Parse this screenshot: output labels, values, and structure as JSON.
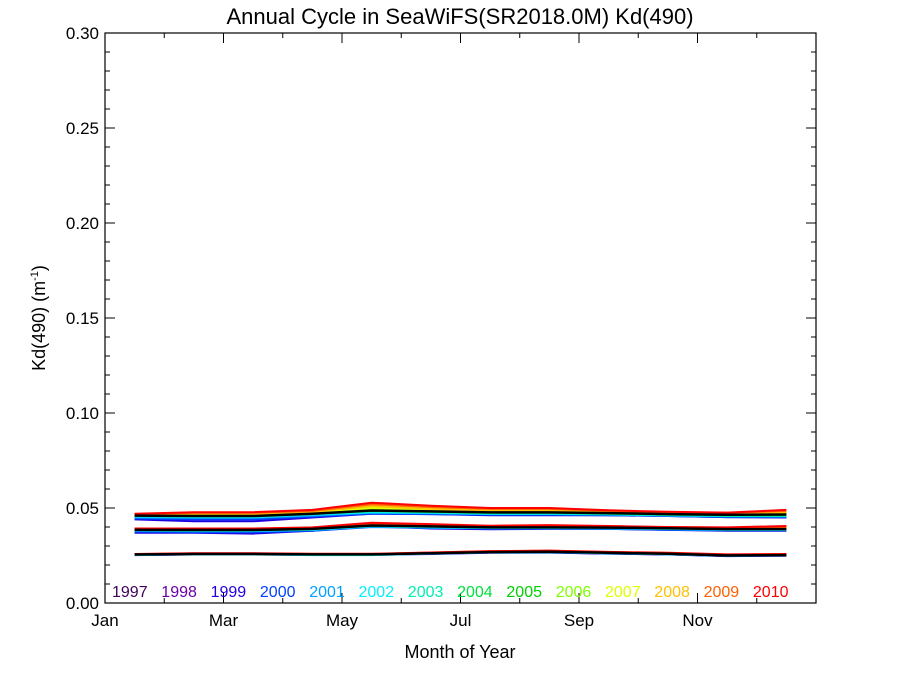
{
  "chart_data": {
    "type": "line",
    "title": "Annual Cycle in SeaWiFS(SR2018.0M) Kd(490)",
    "xlabel": "Month of Year",
    "ylabel_main": "Kd(490) (m",
    "ylabel_sup": "-1",
    "ylabel_close": ")",
    "xlim": [
      0,
      12
    ],
    "ylim": [
      0.0,
      0.3
    ],
    "grid": false,
    "x_ticks": [
      {
        "value": 0,
        "label": "Jan"
      },
      {
        "value": 2,
        "label": "Mar"
      },
      {
        "value": 4,
        "label": "May"
      },
      {
        "value": 6,
        "label": "Jul"
      },
      {
        "value": 8,
        "label": "Sep"
      },
      {
        "value": 10,
        "label": "Nov"
      }
    ],
    "y_ticks": [
      {
        "value": 0.0,
        "label": "0.00"
      },
      {
        "value": 0.05,
        "label": "0.05"
      },
      {
        "value": 0.1,
        "label": "0.10"
      },
      {
        "value": 0.15,
        "label": "0.15"
      },
      {
        "value": 0.2,
        "label": "0.20"
      },
      {
        "value": 0.25,
        "label": "0.25"
      },
      {
        "value": 0.3,
        "label": "0.30"
      }
    ],
    "x": [
      0.5,
      1.5,
      2.5,
      3.5,
      4.5,
      5.5,
      6.5,
      7.5,
      8.5,
      9.5,
      10.5,
      11.5
    ],
    "legend_placement": "bottom",
    "series": [
      {
        "name": "1997",
        "color": "#40005a",
        "upper": [
          0.046,
          0.046,
          0.046,
          0.0475,
          0.0485,
          0.048,
          0.0475,
          0.0475,
          0.047,
          0.0465,
          0.046,
          0.046
        ],
        "middle": [
          0.0385,
          0.0385,
          0.0385,
          0.0385,
          0.0405,
          0.04,
          0.0395,
          0.0395,
          0.0395,
          0.039,
          0.0385,
          0.0385
        ],
        "lower": [
          0.0255,
          0.0258,
          0.0258,
          0.0256,
          0.0256,
          0.0262,
          0.0268,
          0.0268,
          0.0262,
          0.0258,
          0.025,
          0.0252
        ]
      },
      {
        "name": "1998",
        "color": "#6a00a8",
        "upper": [
          0.0455,
          0.0455,
          0.0455,
          0.047,
          0.048,
          0.0478,
          0.0472,
          0.0472,
          0.0468,
          0.0462,
          0.0458,
          0.0458
        ],
        "middle": [
          0.038,
          0.038,
          0.038,
          0.0382,
          0.0402,
          0.0398,
          0.0392,
          0.0392,
          0.0392,
          0.0388,
          0.0382,
          0.0382
        ],
        "lower": [
          0.0253,
          0.0256,
          0.0256,
          0.0254,
          0.0254,
          0.026,
          0.0266,
          0.0266,
          0.026,
          0.0256,
          0.0248,
          0.025
        ]
      },
      {
        "name": "1999",
        "color": "#2000e0",
        "upper": [
          0.044,
          0.043,
          0.043,
          0.045,
          0.047,
          0.0468,
          0.0462,
          0.0462,
          0.0462,
          0.0458,
          0.0452,
          0.045
        ],
        "middle": [
          0.037,
          0.037,
          0.0365,
          0.038,
          0.0405,
          0.0392,
          0.0388,
          0.039,
          0.039,
          0.0385,
          0.038,
          0.038
        ],
        "lower": [
          0.0252,
          0.0255,
          0.0255,
          0.0253,
          0.0253,
          0.0258,
          0.0264,
          0.0265,
          0.026,
          0.0255,
          0.0247,
          0.0249
        ]
      },
      {
        "name": "2000",
        "color": "#0040ff",
        "upper": [
          0.0445,
          0.044,
          0.044,
          0.0455,
          0.047,
          0.0468,
          0.0465,
          0.0465,
          0.0462,
          0.0458,
          0.0452,
          0.0452
        ],
        "middle": [
          0.0375,
          0.0372,
          0.0372,
          0.038,
          0.04,
          0.0395,
          0.0392,
          0.0392,
          0.039,
          0.0386,
          0.0382,
          0.0382
        ],
        "lower": [
          0.0254,
          0.0257,
          0.0257,
          0.0255,
          0.0255,
          0.0261,
          0.0267,
          0.0267,
          0.0261,
          0.0257,
          0.0249,
          0.0251
        ]
      },
      {
        "name": "2001",
        "color": "#00a0ff",
        "upper": [
          0.045,
          0.0448,
          0.0448,
          0.046,
          0.0475,
          0.0472,
          0.0468,
          0.0468,
          0.0465,
          0.046,
          0.0456,
          0.0456
        ],
        "middle": [
          0.038,
          0.0378,
          0.0378,
          0.0384,
          0.0402,
          0.0397,
          0.0393,
          0.0393,
          0.0392,
          0.0388,
          0.0384,
          0.0384
        ],
        "lower": [
          0.0254,
          0.0257,
          0.0257,
          0.0255,
          0.0255,
          0.0261,
          0.0267,
          0.0268,
          0.0262,
          0.0257,
          0.0249,
          0.0251
        ]
      },
      {
        "name": "2002",
        "color": "#00f0ff",
        "upper": [
          0.0455,
          0.0452,
          0.0452,
          0.0465,
          0.0478,
          0.0475,
          0.047,
          0.047,
          0.0467,
          0.0462,
          0.0458,
          0.0458
        ],
        "middle": [
          0.0382,
          0.038,
          0.038,
          0.0386,
          0.0404,
          0.0399,
          0.0395,
          0.0395,
          0.0394,
          0.039,
          0.0386,
          0.0386
        ],
        "lower": [
          0.0253,
          0.0256,
          0.0256,
          0.0252,
          0.0252,
          0.026,
          0.0266,
          0.0268,
          0.0262,
          0.0257,
          0.0249,
          0.025
        ]
      },
      {
        "name": "2003",
        "color": "#00f0b0",
        "upper": [
          0.0458,
          0.0456,
          0.0456,
          0.0468,
          0.0482,
          0.0478,
          0.0472,
          0.0472,
          0.0469,
          0.0464,
          0.046,
          0.046
        ],
        "middle": [
          0.0384,
          0.0382,
          0.0382,
          0.0388,
          0.0406,
          0.0401,
          0.0397,
          0.0397,
          0.0396,
          0.0392,
          0.0388,
          0.0388
        ],
        "lower": [
          0.0254,
          0.0257,
          0.0257,
          0.0254,
          0.0254,
          0.0261,
          0.0267,
          0.0269,
          0.0263,
          0.0258,
          0.025,
          0.0251
        ]
      },
      {
        "name": "2004",
        "color": "#00e040",
        "upper": [
          0.046,
          0.0458,
          0.0458,
          0.047,
          0.0485,
          0.048,
          0.0475,
          0.0475,
          0.0471,
          0.0466,
          0.0462,
          0.0462
        ],
        "middle": [
          0.0385,
          0.0384,
          0.0384,
          0.039,
          0.0408,
          0.0403,
          0.0398,
          0.0398,
          0.0397,
          0.0393,
          0.0389,
          0.0389
        ],
        "lower": [
          0.0255,
          0.0258,
          0.0258,
          0.0255,
          0.0255,
          0.0262,
          0.0268,
          0.027,
          0.0264,
          0.0259,
          0.0251,
          0.0252
        ]
      },
      {
        "name": "2005",
        "color": "#00d000",
        "upper": [
          0.0462,
          0.046,
          0.046,
          0.0472,
          0.0488,
          0.0482,
          0.0478,
          0.0478,
          0.0473,
          0.0468,
          0.0466,
          0.0475
        ],
        "middle": [
          0.0386,
          0.0385,
          0.0385,
          0.0391,
          0.041,
          0.0404,
          0.0399,
          0.0399,
          0.0398,
          0.0394,
          0.039,
          0.039
        ],
        "lower": [
          0.0255,
          0.0258,
          0.0258,
          0.0255,
          0.0255,
          0.0262,
          0.0268,
          0.027,
          0.0264,
          0.0259,
          0.0251,
          0.0252
        ]
      },
      {
        "name": "2006",
        "color": "#80ff00",
        "upper": [
          0.0463,
          0.0462,
          0.0462,
          0.0474,
          0.0492,
          0.0485,
          0.048,
          0.048,
          0.0475,
          0.047,
          0.0468,
          0.0478
        ],
        "middle": [
          0.0387,
          0.0386,
          0.0386,
          0.0392,
          0.0411,
          0.0405,
          0.04,
          0.04,
          0.0399,
          0.0395,
          0.0391,
          0.0391
        ],
        "lower": [
          0.0256,
          0.0259,
          0.0259,
          0.0256,
          0.0256,
          0.0263,
          0.0269,
          0.0271,
          0.0265,
          0.026,
          0.0252,
          0.0253
        ]
      },
      {
        "name": "2007",
        "color": "#e0ff00",
        "upper": [
          0.0465,
          0.0465,
          0.0465,
          0.0477,
          0.05,
          0.049,
          0.0483,
          0.0483,
          0.0477,
          0.0472,
          0.047,
          0.0475
        ],
        "middle": [
          0.0388,
          0.0388,
          0.0388,
          0.0394,
          0.0413,
          0.0407,
          0.0402,
          0.0402,
          0.0401,
          0.0396,
          0.0393,
          0.0393
        ],
        "lower": [
          0.0256,
          0.0259,
          0.0259,
          0.0256,
          0.0256,
          0.0263,
          0.027,
          0.0272,
          0.0266,
          0.0261,
          0.0253,
          0.0254
        ]
      },
      {
        "name": "2008",
        "color": "#ffc000",
        "upper": [
          0.0466,
          0.0468,
          0.0468,
          0.048,
          0.051,
          0.0495,
          0.0487,
          0.0487,
          0.048,
          0.0475,
          0.0472,
          0.0478
        ],
        "middle": [
          0.0389,
          0.0389,
          0.0389,
          0.0395,
          0.0415,
          0.0409,
          0.0403,
          0.0403,
          0.0402,
          0.0397,
          0.0394,
          0.0394
        ],
        "lower": [
          0.0257,
          0.026,
          0.026,
          0.0257,
          0.0257,
          0.0264,
          0.0271,
          0.0274,
          0.0267,
          0.0262,
          0.0254,
          0.0255
        ]
      },
      {
        "name": "2009",
        "color": "#ff6000",
        "upper": [
          0.0468,
          0.0475,
          0.0475,
          0.0485,
          0.052,
          0.0505,
          0.0495,
          0.0495,
          0.0485,
          0.0478,
          0.0475,
          0.0485
        ],
        "middle": [
          0.039,
          0.039,
          0.039,
          0.0396,
          0.0418,
          0.0412,
          0.0405,
          0.0408,
          0.0404,
          0.0399,
          0.0396,
          0.04
        ],
        "lower": [
          0.0257,
          0.0261,
          0.0261,
          0.0258,
          0.0258,
          0.0265,
          0.0272,
          0.0275,
          0.0268,
          0.0263,
          0.0255,
          0.0256
        ]
      },
      {
        "name": "2010",
        "color": "#ff0000",
        "upper": [
          0.047,
          0.0478,
          0.0478,
          0.049,
          0.0528,
          0.0512,
          0.05,
          0.05,
          0.0488,
          0.048,
          0.0476,
          0.049
        ],
        "middle": [
          0.0392,
          0.0392,
          0.0392,
          0.0398,
          0.0422,
          0.0415,
          0.0407,
          0.041,
          0.0405,
          0.04,
          0.0398,
          0.0405
        ],
        "lower": [
          0.0258,
          0.0262,
          0.0262,
          0.0259,
          0.0259,
          0.0266,
          0.0273,
          0.0276,
          0.0269,
          0.0264,
          0.0256,
          0.0258
        ]
      }
    ],
    "mean": {
      "color": "#000000",
      "upper": [
        0.046,
        0.0458,
        0.0458,
        0.047,
        0.0487,
        0.0482,
        0.0477,
        0.0477,
        0.0473,
        0.0468,
        0.0464,
        0.0466
      ],
      "middle": [
        0.0385,
        0.0384,
        0.0384,
        0.039,
        0.0408,
        0.0403,
        0.0398,
        0.0398,
        0.0397,
        0.0393,
        0.0389,
        0.0389
      ],
      "lower": [
        0.0255,
        0.0258,
        0.0258,
        0.0256,
        0.0256,
        0.0262,
        0.0268,
        0.027,
        0.0264,
        0.0259,
        0.025,
        0.0252
      ]
    }
  }
}
